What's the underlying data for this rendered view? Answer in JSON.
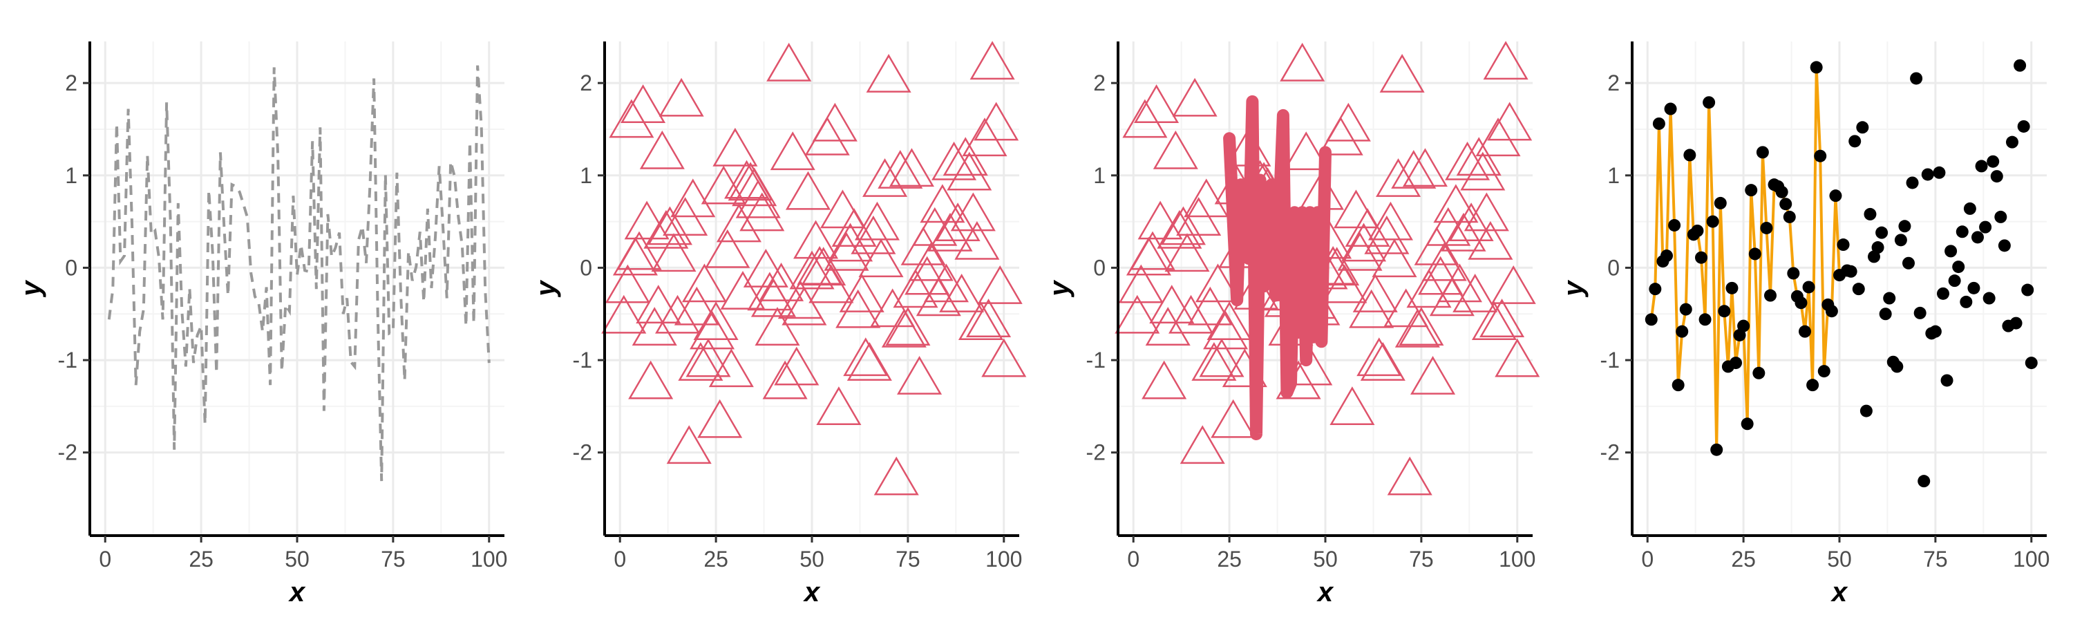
{
  "colors": {
    "background": "#ffffff",
    "grid_major": "#ebebeb",
    "grid_minor": "#f4f4f4",
    "axis": "#000000",
    "tick_text": "#4d4d4d",
    "dashed_line": "#999999",
    "triangle": "#df536b",
    "thick_line": "#df536b",
    "points": "#000000",
    "orange_line": "#f5a20a"
  },
  "chart_data": [
    {
      "type": "line",
      "style": "dashed-grey",
      "xlabel": "x",
      "ylabel": "y",
      "xlim": [
        -4,
        104
      ],
      "ylim": [
        -2.9,
        2.45
      ],
      "xticks": [
        0,
        25,
        50,
        75,
        100
      ],
      "yticks": [
        -2,
        -1,
        0,
        1,
        2
      ],
      "xtick_labels": [
        "0",
        "25",
        "50",
        "75",
        "100"
      ],
      "ytick_labels": [
        "-2",
        "-1",
        "0",
        "1",
        "2"
      ],
      "grid": true,
      "series": [
        {
          "y": [
            -0.56,
            -0.23,
            1.56,
            0.07,
            0.13,
            1.72,
            0.46,
            -1.27,
            -0.69,
            -0.45,
            1.22,
            0.36,
            0.4,
            0.11,
            -0.56,
            1.79,
            0.5,
            -1.97,
            0.7,
            -0.47,
            -1.07,
            -0.22,
            -1.03,
            -0.73,
            -0.63,
            -1.69,
            0.84,
            0.15,
            -1.14,
            1.25,
            0.43,
            -0.3,
            0.9,
            0.88,
            0.82,
            0.69,
            0.55,
            -0.06,
            -0.31,
            -0.38,
            -0.69,
            -0.21,
            -1.27,
            2.17,
            1.21,
            -1.12,
            -0.4,
            -0.47,
            0.78,
            -0.08,
            0.25,
            -0.03,
            -0.04,
            1.37,
            -0.23,
            1.52,
            -1.55,
            0.58,
            0.12,
            0.22,
            0.38,
            -0.5,
            -0.33,
            -1.02,
            -1.07,
            0.3,
            0.45,
            0.05,
            0.92,
            2.05,
            -0.49,
            -2.31,
            1.01,
            -0.71,
            -0.69,
            1.03,
            -0.28,
            -1.22,
            0.18,
            -0.14,
            0.01,
            0.39,
            -0.37,
            0.64,
            -0.22,
            0.33,
            1.1,
            0.44,
            -0.33,
            1.15,
            0.99,
            0.55,
            0.24,
            -0.63,
            1.36,
            -0.6,
            2.19,
            1.53,
            -0.24,
            -1.03
          ]
        }
      ]
    },
    {
      "type": "scatter",
      "style": "open-triangles",
      "xlabel": "x",
      "ylabel": "y",
      "xlim": [
        -4,
        104
      ],
      "ylim": [
        -2.9,
        2.45
      ],
      "xticks": [
        0,
        25,
        50,
        75,
        100
      ],
      "yticks": [
        -2,
        -1,
        0,
        1,
        2
      ],
      "xtick_labels": [
        "0",
        "25",
        "50",
        "75",
        "100"
      ],
      "ytick_labels": [
        "-2",
        "-1",
        "0",
        "1",
        "2"
      ],
      "grid": true,
      "series": [
        {
          "y": [
            -0.56,
            -0.23,
            1.56,
            0.07,
            0.13,
            1.72,
            0.46,
            -1.27,
            -0.69,
            -0.45,
            1.22,
            0.36,
            0.4,
            0.11,
            -0.56,
            1.79,
            0.5,
            -1.97,
            0.7,
            -0.47,
            -1.07,
            -0.22,
            -1.03,
            -0.73,
            -0.63,
            -1.69,
            0.84,
            0.15,
            -1.14,
            1.25,
            0.43,
            -0.3,
            0.9,
            0.88,
            0.82,
            0.69,
            0.55,
            -0.06,
            -0.31,
            -0.38,
            -0.69,
            -0.21,
            -1.27,
            2.17,
            1.21,
            -1.12,
            -0.4,
            -0.47,
            0.78,
            -0.08,
            0.25,
            -0.03,
            -0.04,
            1.37,
            -0.23,
            1.52,
            -1.55,
            0.58,
            0.12,
            0.22,
            0.38,
            -0.5,
            -0.33,
            -1.02,
            -1.07,
            0.3,
            0.45,
            0.05,
            0.92,
            2.05,
            -0.49,
            -2.31,
            1.01,
            -0.71,
            -0.69,
            1.03,
            -0.28,
            -1.22,
            0.18,
            -0.14,
            0.01,
            0.39,
            -0.37,
            0.64,
            -0.22,
            0.33,
            1.1,
            0.44,
            -0.33,
            1.15,
            0.99,
            0.55,
            0.24,
            -0.63,
            1.36,
            -0.6,
            2.19,
            1.53,
            -0.24,
            -1.03
          ]
        }
      ]
    },
    {
      "type": "scatter",
      "style": "open-triangles-with-thick-line",
      "xlabel": "x",
      "ylabel": "y",
      "xlim": [
        -4,
        104
      ],
      "ylim": [
        -2.9,
        2.45
      ],
      "xticks": [
        0,
        25,
        50,
        75,
        100
      ],
      "yticks": [
        -2,
        -1,
        0,
        1,
        2
      ],
      "xtick_labels": [
        "0",
        "25",
        "50",
        "75",
        "100"
      ],
      "ytick_labels": [
        "-2",
        "-1",
        "0",
        "1",
        "2"
      ],
      "grid": true,
      "series": [
        {
          "y": [
            -0.56,
            -0.23,
            1.56,
            0.07,
            0.13,
            1.72,
            0.46,
            -1.27,
            -0.69,
            -0.45,
            1.22,
            0.36,
            0.4,
            0.11,
            -0.56,
            1.79,
            0.5,
            -1.97,
            0.7,
            -0.47,
            -1.07,
            -0.22,
            -1.03,
            -0.73,
            -0.63,
            -1.69,
            0.84,
            0.15,
            -1.14,
            1.25,
            0.43,
            -0.3,
            0.9,
            0.88,
            0.82,
            0.69,
            0.55,
            -0.06,
            -0.31,
            -0.38,
            -0.69,
            -0.21,
            -1.27,
            2.17,
            1.21,
            -1.12,
            -0.4,
            -0.47,
            0.78,
            -0.08,
            0.25,
            -0.03,
            -0.04,
            1.37,
            -0.23,
            1.52,
            -1.55,
            0.58,
            0.12,
            0.22,
            0.38,
            -0.5,
            -0.33,
            -1.02,
            -1.07,
            0.3,
            0.45,
            0.05,
            0.92,
            2.05,
            -0.49,
            -2.31,
            1.01,
            -0.71,
            -0.69,
            1.03,
            -0.28,
            -1.22,
            0.18,
            -0.14,
            0.01,
            0.39,
            -0.37,
            0.64,
            -0.22,
            0.33,
            1.1,
            0.44,
            -0.33,
            1.15,
            0.99,
            0.55,
            0.24,
            -0.63,
            1.36,
            -0.6,
            2.19,
            1.53,
            -0.24,
            -1.03
          ]
        },
        {
          "x": [
            25,
            26,
            27,
            28,
            29,
            30,
            31,
            32,
            33,
            34,
            35,
            36,
            37,
            38,
            39,
            40,
            41,
            42,
            43,
            44,
            45,
            46,
            47,
            48,
            49,
            50
          ],
          "y": [
            1.4,
            0.5,
            -0.35,
            0.9,
            0.2,
            0.1,
            1.8,
            -1.8,
            0.95,
            -0.2,
            0.2,
            0.9,
            -0.3,
            0.6,
            1.65,
            -1.35,
            -1.25,
            0.6,
            -0.7,
            0.6,
            -1.0,
            0.6,
            -0.75,
            0.6,
            -0.8,
            1.25
          ]
        }
      ]
    },
    {
      "type": "scatter",
      "style": "points-with-orange-line",
      "xlabel": "x",
      "ylabel": "y",
      "xlim": [
        -4,
        104
      ],
      "ylim": [
        -2.9,
        2.45
      ],
      "xticks": [
        0,
        25,
        50,
        75,
        100
      ],
      "yticks": [
        -2,
        -1,
        0,
        1,
        2
      ],
      "xtick_labels": [
        "0",
        "25",
        "50",
        "75",
        "100"
      ],
      "ytick_labels": [
        "-2",
        "-1",
        "0",
        "1",
        "2"
      ],
      "grid": true,
      "series": [
        {
          "y": [
            -0.56,
            -0.23,
            1.56,
            0.07,
            0.13,
            1.72,
            0.46,
            -1.27,
            -0.69,
            -0.45,
            1.22,
            0.36,
            0.4,
            0.11,
            -0.56,
            1.79,
            0.5,
            -1.97,
            0.7,
            -0.47,
            -1.07,
            -0.22,
            -1.03,
            -0.73,
            -0.63,
            -1.69,
            0.84,
            0.15,
            -1.14,
            1.25,
            0.43,
            -0.3,
            0.9,
            0.88,
            0.82,
            0.69,
            0.55,
            -0.06,
            -0.31,
            -0.38,
            -0.69,
            -0.21,
            -1.27,
            2.17,
            1.21,
            -1.12,
            -0.4,
            -0.47,
            0.78,
            -0.08,
            0.25,
            -0.03,
            -0.04,
            1.37,
            -0.23,
            1.52,
            -1.55,
            0.58,
            0.12,
            0.22,
            0.38,
            -0.5,
            -0.33,
            -1.02,
            -1.07,
            0.3,
            0.45,
            0.05,
            0.92,
            2.05,
            -0.49,
            -2.31,
            1.01,
            -0.71,
            -0.69,
            1.03,
            -0.28,
            -1.22,
            0.18,
            -0.14,
            0.01,
            0.39,
            -0.37,
            0.64,
            -0.22,
            0.33,
            1.1,
            0.44,
            -0.33,
            1.15,
            0.99,
            0.55,
            0.24,
            -0.63,
            1.36,
            -0.6,
            2.19,
            1.53,
            -0.24,
            -1.03
          ]
        }
      ]
    }
  ]
}
